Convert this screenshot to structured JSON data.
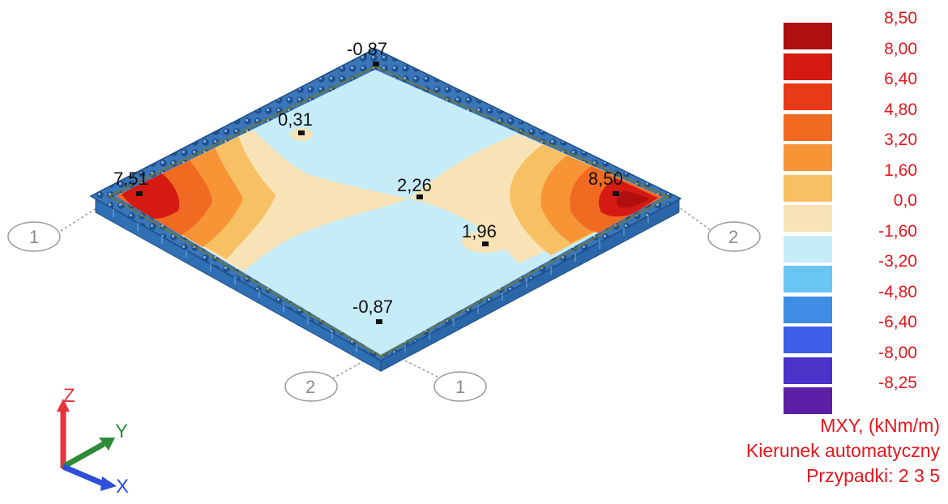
{
  "plate": {
    "values": [
      {
        "id": "top",
        "label": "-0,87"
      },
      {
        "id": "inner",
        "label": "0,31"
      },
      {
        "id": "left",
        "label": "7,51"
      },
      {
        "id": "center",
        "label": "2,26"
      },
      {
        "id": "right",
        "label": "8,50"
      },
      {
        "id": "lower",
        "label": "1,96"
      },
      {
        "id": "bottom",
        "label": "-0,87"
      }
    ],
    "grid_labels": {
      "left": "1",
      "right": "2",
      "bottom_left": "2",
      "bottom_right": "1"
    }
  },
  "axes": {
    "z": "Z",
    "y": "Y",
    "x": "X",
    "z_color": "#e8323c",
    "y_color": "#2e8b3a",
    "x_color": "#2f4fd8"
  },
  "legend": {
    "items": [
      {
        "label": "8,50",
        "color": "#b10f0f"
      },
      {
        "label": "8,00",
        "color": "#d41a12"
      },
      {
        "label": "6,40",
        "color": "#e83a17"
      },
      {
        "label": "4,80",
        "color": "#f06a22"
      },
      {
        "label": "3,20",
        "color": "#f69436"
      },
      {
        "label": "1,60",
        "color": "#f7c063"
      },
      {
        "label": "0,0",
        "color": "#f8e3b6"
      },
      {
        "label": "-1,60",
        "color": "#c6ecf8"
      },
      {
        "label": "-3,20",
        "color": "#69c6f2"
      },
      {
        "label": "-4,80",
        "color": "#3f8de4"
      },
      {
        "label": "-6,40",
        "color": "#3d5ee8"
      },
      {
        "label": "-8,00",
        "color": "#4b33c9"
      },
      {
        "label": "-8,25",
        "color": "#5d1fa6"
      }
    ]
  },
  "info": {
    "quantity": "MXY, (kNm/m)",
    "direction": "Kierunek automatyczny",
    "cases": "Przypadki: 2 3 5"
  }
}
